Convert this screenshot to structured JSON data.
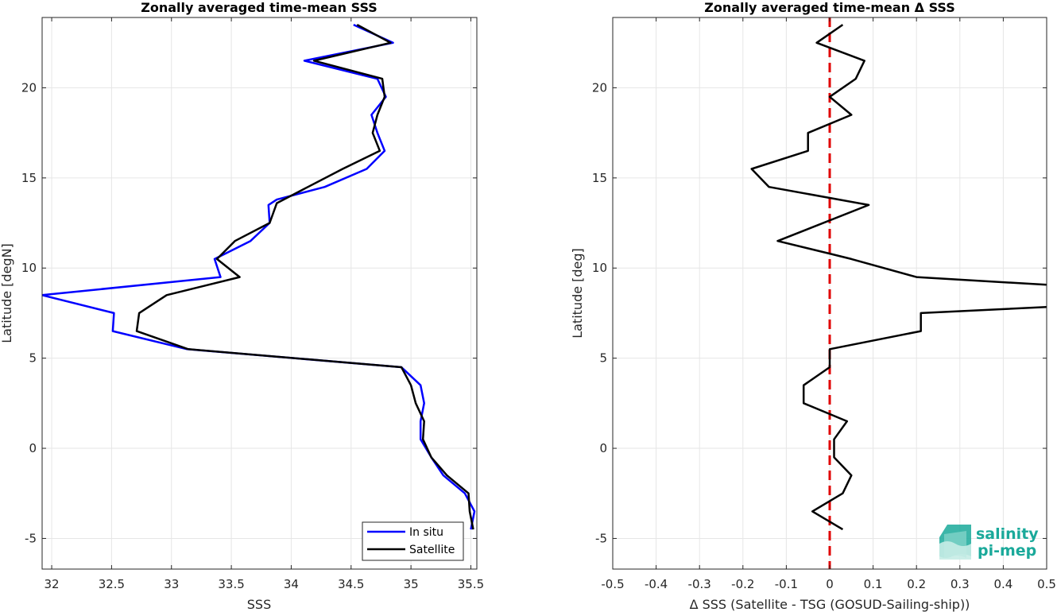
{
  "chart_data": [
    {
      "type": "line",
      "title": "Zonally averaged time-mean SSS",
      "xlabel": "SSS",
      "ylabel": "Latitude [degN]",
      "xlim": [
        31.92,
        35.55
      ],
      "ylim": [
        -6.7,
        23.9
      ],
      "xticks": [
        32,
        32.5,
        33,
        33.5,
        34,
        34.5,
        35,
        35.5
      ],
      "xtick_labels": [
        "32",
        "32.5",
        "33",
        "33.5",
        "34",
        "34.5",
        "35",
        "35.5"
      ],
      "yticks": [
        -5,
        0,
        5,
        10,
        15,
        20
      ],
      "ytick_labels": [
        "-5",
        "0",
        "5",
        "10",
        "15",
        "20"
      ],
      "grid": true,
      "legend": "bottom-right",
      "series": [
        {
          "name": "In situ",
          "color": "#0000ff",
          "points": [
            [
              34.52,
              23.5
            ],
            [
              34.85,
              22.5
            ],
            [
              34.11,
              21.5
            ],
            [
              34.72,
              20.5
            ],
            [
              34.79,
              19.5
            ],
            [
              34.67,
              18.5
            ],
            [
              34.72,
              17.5
            ],
            [
              34.78,
              16.5
            ],
            [
              34.63,
              15.5
            ],
            [
              34.28,
              14.5
            ],
            [
              33.88,
              13.8
            ],
            [
              33.81,
              13.5
            ],
            [
              33.82,
              12.5
            ],
            [
              33.66,
              11.5
            ],
            [
              33.36,
              10.5
            ],
            [
              33.41,
              9.5
            ],
            [
              31.92,
              8.5
            ],
            [
              32.52,
              7.5
            ],
            [
              32.51,
              6.5
            ],
            [
              33.13,
              5.5
            ],
            [
              34.92,
              4.5
            ],
            [
              35.08,
              3.5
            ],
            [
              35.11,
              2.5
            ],
            [
              35.08,
              1.5
            ],
            [
              35.08,
              0.5
            ],
            [
              35.17,
              -0.5
            ],
            [
              35.27,
              -1.5
            ],
            [
              35.45,
              -2.5
            ],
            [
              35.53,
              -3.5
            ],
            [
              35.5,
              -4.5
            ]
          ]
        },
        {
          "name": "Satellite",
          "color": "#000000",
          "points": [
            [
              34.55,
              23.5
            ],
            [
              34.83,
              22.5
            ],
            [
              34.19,
              21.5
            ],
            [
              34.76,
              20.5
            ],
            [
              34.78,
              19.5
            ],
            [
              34.72,
              18.5
            ],
            [
              34.68,
              17.5
            ],
            [
              34.74,
              16.5
            ],
            [
              34.43,
              15.5
            ],
            [
              34.14,
              14.5
            ],
            [
              33.88,
              13.6
            ],
            [
              33.82,
              12.5
            ],
            [
              33.53,
              11.5
            ],
            [
              33.38,
              10.5
            ],
            [
              33.57,
              9.5
            ],
            [
              32.96,
              8.5
            ],
            [
              32.73,
              7.5
            ],
            [
              32.71,
              6.5
            ],
            [
              33.14,
              5.5
            ],
            [
              34.92,
              4.5
            ],
            [
              35.0,
              3.5
            ],
            [
              35.04,
              2.5
            ],
            [
              35.11,
              1.5
            ],
            [
              35.1,
              0.5
            ],
            [
              35.17,
              -0.5
            ],
            [
              35.3,
              -1.5
            ],
            [
              35.48,
              -2.5
            ],
            [
              35.49,
              -3.5
            ],
            [
              35.52,
              -4.5
            ]
          ]
        }
      ]
    },
    {
      "type": "line",
      "title": "Zonally averaged time-mean Δ SSS",
      "xlabel": "Δ SSS (Satellite - TSG (GOSUD-Sailing-ship))",
      "ylabel": "Latitude [deg]",
      "xlim": [
        -0.5,
        0.5
      ],
      "ylim": [
        -6.7,
        23.9
      ],
      "xticks": [
        -0.5,
        -0.4,
        -0.3,
        -0.2,
        -0.1,
        0,
        0.1,
        0.2,
        0.3,
        0.4,
        0.5
      ],
      "xtick_labels": [
        "-0.5",
        "-0.4",
        "-0.3",
        "-0.2",
        "-0.1",
        "0",
        "0.1",
        "0.2",
        "0.3",
        "0.4",
        "0.5"
      ],
      "yticks": [
        -5,
        0,
        5,
        10,
        15,
        20
      ],
      "ytick_labels": [
        "-5",
        "0",
        "5",
        "10",
        "15",
        "20"
      ],
      "grid": true,
      "zero_line": {
        "x": 0,
        "color": "#e00000",
        "style": "dashed"
      },
      "series": [
        {
          "color": "#000000",
          "points": [
            [
              0.03,
              23.5
            ],
            [
              -0.03,
              22.5
            ],
            [
              0.08,
              21.5
            ],
            [
              0.06,
              20.5
            ],
            [
              0.0,
              19.5
            ],
            [
              0.05,
              18.5
            ],
            [
              -0.05,
              17.5
            ],
            [
              -0.05,
              16.5
            ],
            [
              -0.18,
              15.5
            ],
            [
              -0.14,
              14.5
            ],
            [
              0.09,
              13.5
            ],
            [
              -0.12,
              11.5
            ],
            [
              0.0,
              10.8
            ],
            [
              0.05,
              10.5
            ],
            [
              0.2,
              9.5
            ],
            [
              0.55,
              9.0
            ],
            [
              0.55,
              7.9
            ],
            [
              0.21,
              7.5
            ],
            [
              0.21,
              6.5
            ],
            [
              0.0,
              5.5
            ],
            [
              0.0,
              4.5
            ],
            [
              -0.06,
              3.5
            ],
            [
              -0.06,
              2.5
            ],
            [
              0.04,
              1.5
            ],
            [
              0.01,
              0.5
            ],
            [
              0.01,
              -0.5
            ],
            [
              0.05,
              -1.5
            ],
            [
              0.03,
              -2.5
            ],
            [
              -0.04,
              -3.5
            ],
            [
              0.03,
              -4.5
            ]
          ]
        }
      ]
    }
  ],
  "logo": {
    "line1": "salinity",
    "line2": "pi-mep",
    "color": "#1aa99a"
  }
}
